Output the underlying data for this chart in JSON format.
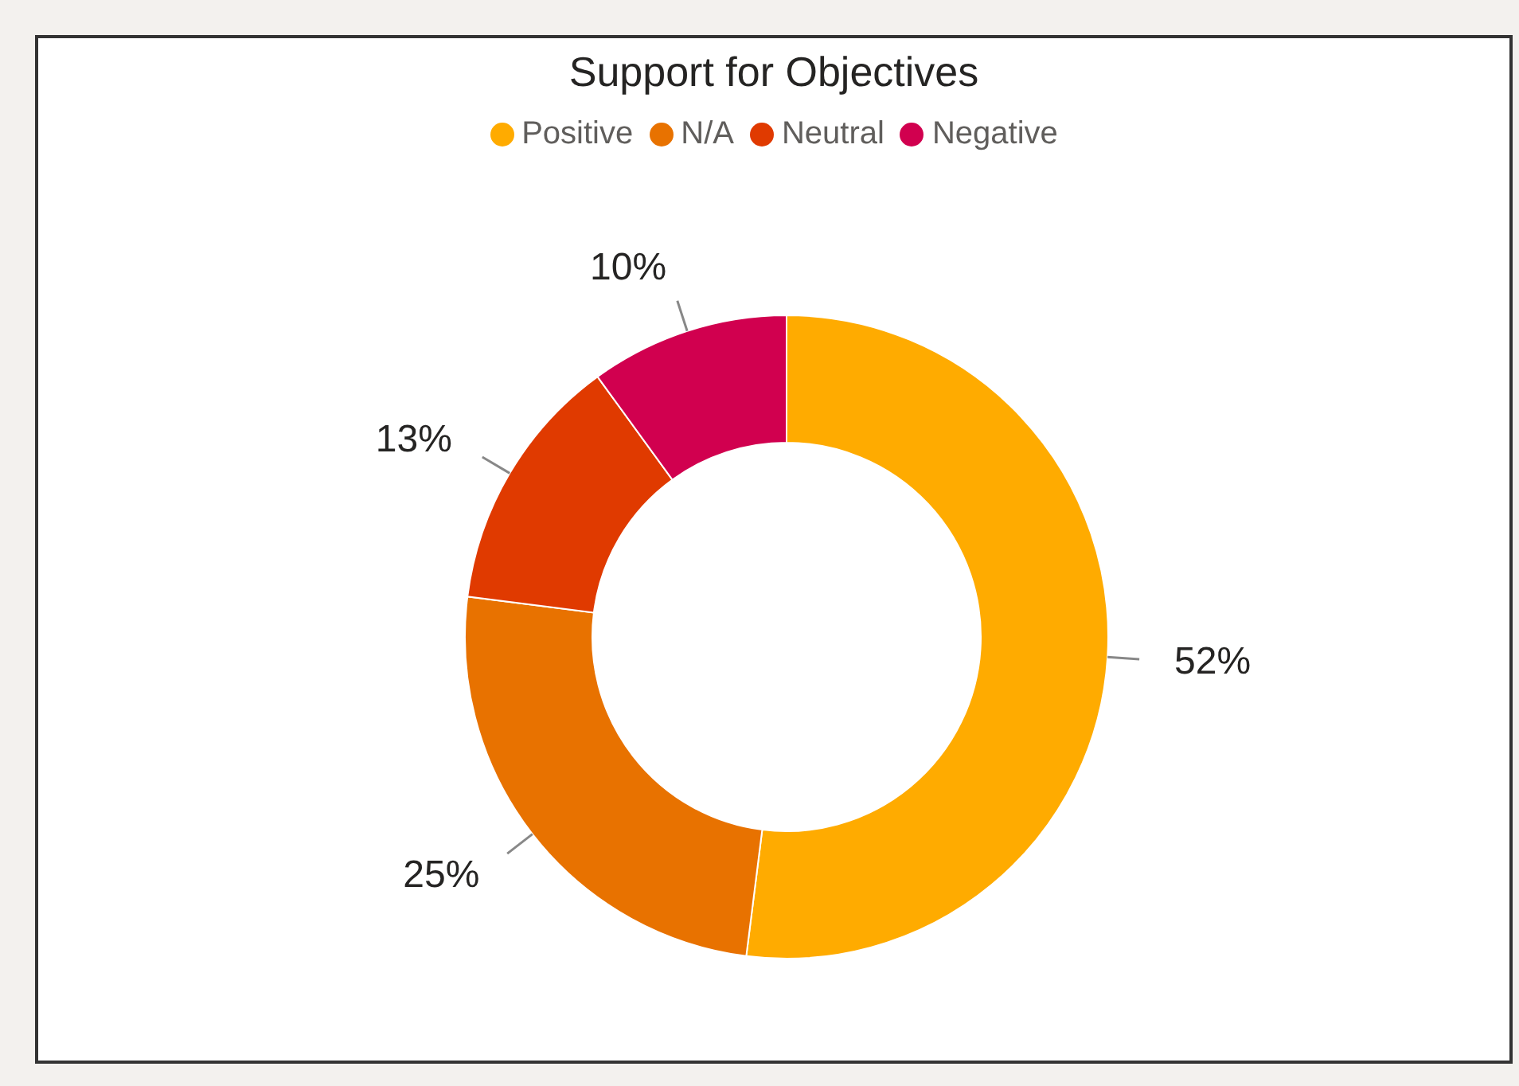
{
  "chart_data": {
    "type": "donut",
    "title": "Support for Objectives",
    "categories": [
      "Positive",
      "N/A",
      "Neutral",
      "Negative"
    ],
    "values": [
      52,
      25,
      13,
      10
    ],
    "colors": [
      "#ffab00",
      "#e87200",
      "#e03a00",
      "#d1004f"
    ],
    "value_labels": [
      "52%",
      "25%",
      "13%",
      "10%"
    ],
    "legend": "top"
  }
}
